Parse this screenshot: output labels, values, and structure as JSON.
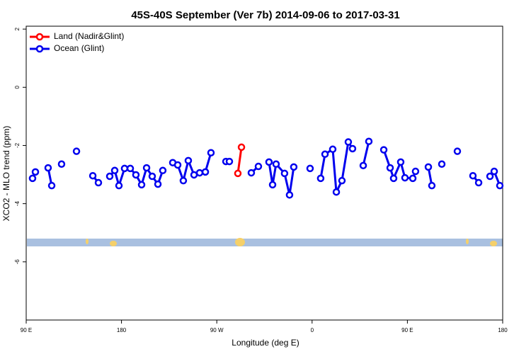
{
  "chart_data": {
    "type": "line",
    "title": "45S-40S September (Ver 7b)   2014-09-06 to 2017-03-31",
    "x_label": "Longitude (deg E)",
    "y_label": "XCO2 - MLO trend (ppm)",
    "xlim": [
      90,
      540
    ],
    "ylim": [
      -8,
      2.1
    ],
    "xticks": [
      {
        "value": 90,
        "label": "90 E"
      },
      {
        "value": 180,
        "label": "180"
      },
      {
        "value": 270,
        "label": "90 W"
      },
      {
        "value": 360,
        "label": "0"
      },
      {
        "value": 450,
        "label": "90 E"
      },
      {
        "value": 540,
        "label": "180"
      }
    ],
    "yticks": [
      2,
      0,
      -2,
      -4,
      -6
    ],
    "legend": "top-left",
    "series": [
      {
        "name": "Land (Nadir&Glint)",
        "color": "#ff0000",
        "x": [
          289.9,
          293.3
        ],
        "values": [
          -2.96,
          -2.06
        ]
      },
      {
        "name": "Ocean (Glint)",
        "color": "#0000ee",
        "x": [
          96.0,
          98.7,
          null,
          110.7,
          114.1,
          null,
          123.4,
          null,
          137.5,
          null,
          152.9,
          158.2,
          null,
          168.9,
          173.6,
          177.6,
          182.9,
          188.3,
          193.6,
          199.0,
          203.7,
          209.0,
          214.4,
          219.0,
          null,
          228.4,
          233.1,
          238.4,
          243.1,
          248.5,
          253.8,
          259.2,
          264.5,
          null,
          278.6,
          281.9,
          null,
          302.6,
          309.3,
          null,
          319.3,
          322.7,
          326.0,
          334.0,
          338.7,
          342.7,
          null,
          358.1,
          null,
          368.1,
          372.2,
          379.5,
          382.9,
          388.2,
          394.2,
          398.2,
          null,
          408.3,
          413.6,
          null,
          427.7,
          433.7,
          437.0,
          443.7,
          447.7,
          455.1,
          457.7,
          null,
          469.8,
          473.1,
          null,
          482.5,
          null,
          497.2,
          null,
          511.9,
          517.3,
          null,
          528.0,
          532.0,
          537.3
        ],
        "values": [
          -3.13,
          -2.91,
          null,
          -2.77,
          -3.38,
          null,
          -2.64,
          null,
          -2.2,
          null,
          -3.04,
          -3.28,
          null,
          -3.06,
          -2.86,
          -3.38,
          -2.79,
          -2.79,
          -3.01,
          -3.35,
          -2.77,
          -3.06,
          -3.33,
          -2.86,
          null,
          -2.59,
          -2.67,
          -3.21,
          -2.52,
          -3.01,
          -2.94,
          -2.91,
          -2.25,
          null,
          -2.55,
          -2.55,
          null,
          -2.94,
          -2.72,
          null,
          -2.57,
          -3.35,
          -2.64,
          -2.96,
          -3.7,
          -2.74,
          null,
          -2.79,
          null,
          -3.13,
          -2.3,
          -2.13,
          -3.6,
          -3.21,
          -1.88,
          -2.11,
          null,
          -2.69,
          -1.86,
          null,
          -2.15,
          -2.77,
          -3.13,
          -2.57,
          -3.11,
          -3.13,
          -2.89,
          null,
          -2.74,
          -3.38,
          null,
          -2.64,
          null,
          -2.2,
          null,
          -3.04,
          -3.28,
          null,
          -3.06,
          -2.89,
          -3.38
        ]
      }
    ]
  }
}
